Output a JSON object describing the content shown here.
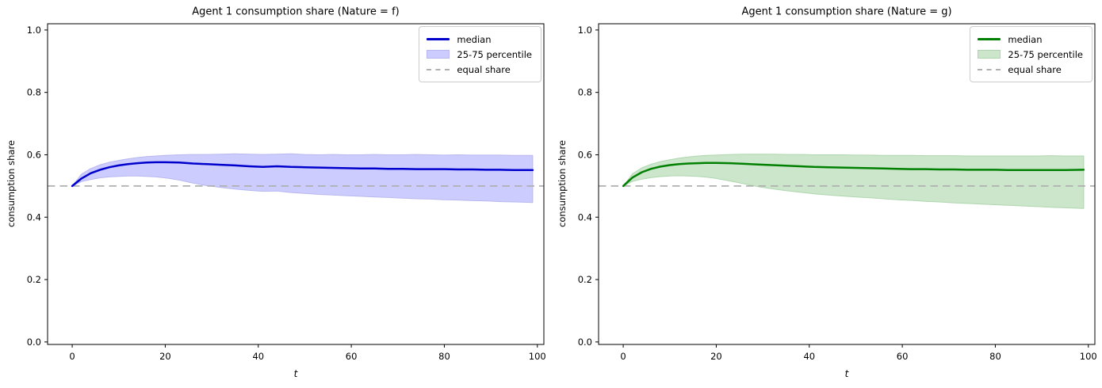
{
  "figure": {
    "background": "#ffffff"
  },
  "legend_labels": {
    "median": "median",
    "band": "25-75 percentile",
    "equal": "equal share"
  },
  "chart_data": [
    {
      "type": "line",
      "title": "Agent 1 consumption share (Nature = f)",
      "xlabel": "t",
      "ylabel": "consumption share",
      "xlim": [
        -5.3,
        101.4
      ],
      "ylim": [
        -0.008,
        1.02
      ],
      "xticks": [
        0,
        20,
        40,
        60,
        80,
        100
      ],
      "xticklabels": [
        "0",
        "20",
        "40",
        "60",
        "80",
        "100"
      ],
      "yticks": [
        0.0,
        0.2,
        0.4,
        0.6,
        0.8,
        1.0
      ],
      "yticklabels": [
        "0.0",
        "0.2",
        "0.4",
        "0.6",
        "0.8",
        "1.0"
      ],
      "grid": false,
      "legend_position": "upper right",
      "equal_share": 0.5,
      "colors": {
        "median": "#0000cd",
        "band_fill": "#ccccff",
        "band_edge": "#b8b8f0",
        "equal_share": "#b0b0b0",
        "axis": "#000000"
      },
      "x": [
        0,
        2,
        4,
        6,
        8,
        10,
        12,
        14,
        16,
        18,
        20,
        23,
        26,
        29,
        32,
        35,
        38,
        41,
        44,
        47,
        50,
        53,
        56,
        59,
        62,
        65,
        68,
        71,
        74,
        77,
        80,
        83,
        86,
        89,
        92,
        95,
        99
      ],
      "series": [
        {
          "name": "median",
          "values": [
            0.5,
            0.524,
            0.541,
            0.552,
            0.56,
            0.566,
            0.57,
            0.573,
            0.575,
            0.576,
            0.576,
            0.575,
            0.572,
            0.57,
            0.568,
            0.566,
            0.563,
            0.561,
            0.563,
            0.561,
            0.56,
            0.559,
            0.558,
            0.557,
            0.556,
            0.556,
            0.555,
            0.555,
            0.554,
            0.554,
            0.554,
            0.553,
            0.553,
            0.552,
            0.552,
            0.551,
            0.551
          ]
        },
        {
          "name": "p75",
          "values": [
            0.5,
            0.538,
            0.556,
            0.568,
            0.576,
            0.582,
            0.587,
            0.591,
            0.594,
            0.596,
            0.598,
            0.6,
            0.601,
            0.601,
            0.602,
            0.603,
            0.602,
            0.601,
            0.602,
            0.603,
            0.601,
            0.6,
            0.601,
            0.6,
            0.6,
            0.601,
            0.6,
            0.6,
            0.601,
            0.6,
            0.599,
            0.6,
            0.599,
            0.599,
            0.599,
            0.598,
            0.598
          ]
        },
        {
          "name": "p25",
          "values": [
            0.5,
            0.514,
            0.521,
            0.526,
            0.529,
            0.531,
            0.532,
            0.532,
            0.531,
            0.529,
            0.526,
            0.519,
            0.509,
            0.501,
            0.495,
            0.49,
            0.486,
            0.483,
            0.484,
            0.479,
            0.476,
            0.473,
            0.471,
            0.469,
            0.467,
            0.465,
            0.463,
            0.461,
            0.459,
            0.458,
            0.456,
            0.455,
            0.453,
            0.452,
            0.45,
            0.449,
            0.447
          ]
        }
      ]
    },
    {
      "type": "line",
      "title": "Agent 1 consumption share (Nature = g)",
      "xlabel": "t",
      "ylabel": "consumption share",
      "xlim": [
        -5.3,
        101.4
      ],
      "ylim": [
        -0.008,
        1.02
      ],
      "xticks": [
        0,
        20,
        40,
        60,
        80,
        100
      ],
      "xticklabels": [
        "0",
        "20",
        "40",
        "60",
        "80",
        "100"
      ],
      "yticks": [
        0.0,
        0.2,
        0.4,
        0.6,
        0.8,
        1.0
      ],
      "yticklabels": [
        "0.0",
        "0.2",
        "0.4",
        "0.6",
        "0.8",
        "1.0"
      ],
      "grid": false,
      "legend_position": "upper right",
      "equal_share": 0.5,
      "colors": {
        "median": "#008000",
        "band_fill": "#cce6cc",
        "band_edge": "#aed6ae",
        "equal_share": "#b0b0b0",
        "axis": "#000000"
      },
      "x": [
        0,
        2,
        4,
        6,
        8,
        10,
        12,
        14,
        16,
        18,
        20,
        23,
        26,
        29,
        32,
        35,
        38,
        41,
        44,
        47,
        50,
        53,
        56,
        59,
        62,
        65,
        68,
        71,
        74,
        77,
        80,
        83,
        86,
        89,
        92,
        95,
        99
      ],
      "series": [
        {
          "name": "median",
          "values": [
            0.5,
            0.527,
            0.544,
            0.555,
            0.562,
            0.567,
            0.57,
            0.572,
            0.573,
            0.574,
            0.574,
            0.573,
            0.571,
            0.569,
            0.567,
            0.565,
            0.563,
            0.561,
            0.56,
            0.559,
            0.558,
            0.557,
            0.556,
            0.555,
            0.554,
            0.554,
            0.553,
            0.553,
            0.552,
            0.552,
            0.552,
            0.551,
            0.551,
            0.551,
            0.551,
            0.551,
            0.552
          ]
        },
        {
          "name": "p75",
          "values": [
            0.5,
            0.539,
            0.558,
            0.57,
            0.578,
            0.584,
            0.589,
            0.593,
            0.596,
            0.598,
            0.599,
            0.601,
            0.602,
            0.602,
            0.602,
            0.601,
            0.601,
            0.6,
            0.6,
            0.6,
            0.599,
            0.599,
            0.598,
            0.598,
            0.598,
            0.597,
            0.597,
            0.597,
            0.596,
            0.596,
            0.596,
            0.596,
            0.596,
            0.596,
            0.597,
            0.596,
            0.596
          ]
        },
        {
          "name": "p25",
          "values": [
            0.5,
            0.515,
            0.522,
            0.527,
            0.53,
            0.532,
            0.533,
            0.532,
            0.531,
            0.528,
            0.524,
            0.516,
            0.507,
            0.498,
            0.491,
            0.485,
            0.48,
            0.475,
            0.471,
            0.468,
            0.465,
            0.462,
            0.459,
            0.456,
            0.454,
            0.451,
            0.449,
            0.446,
            0.444,
            0.442,
            0.44,
            0.438,
            0.436,
            0.434,
            0.432,
            0.43,
            0.428
          ]
        }
      ]
    }
  ]
}
